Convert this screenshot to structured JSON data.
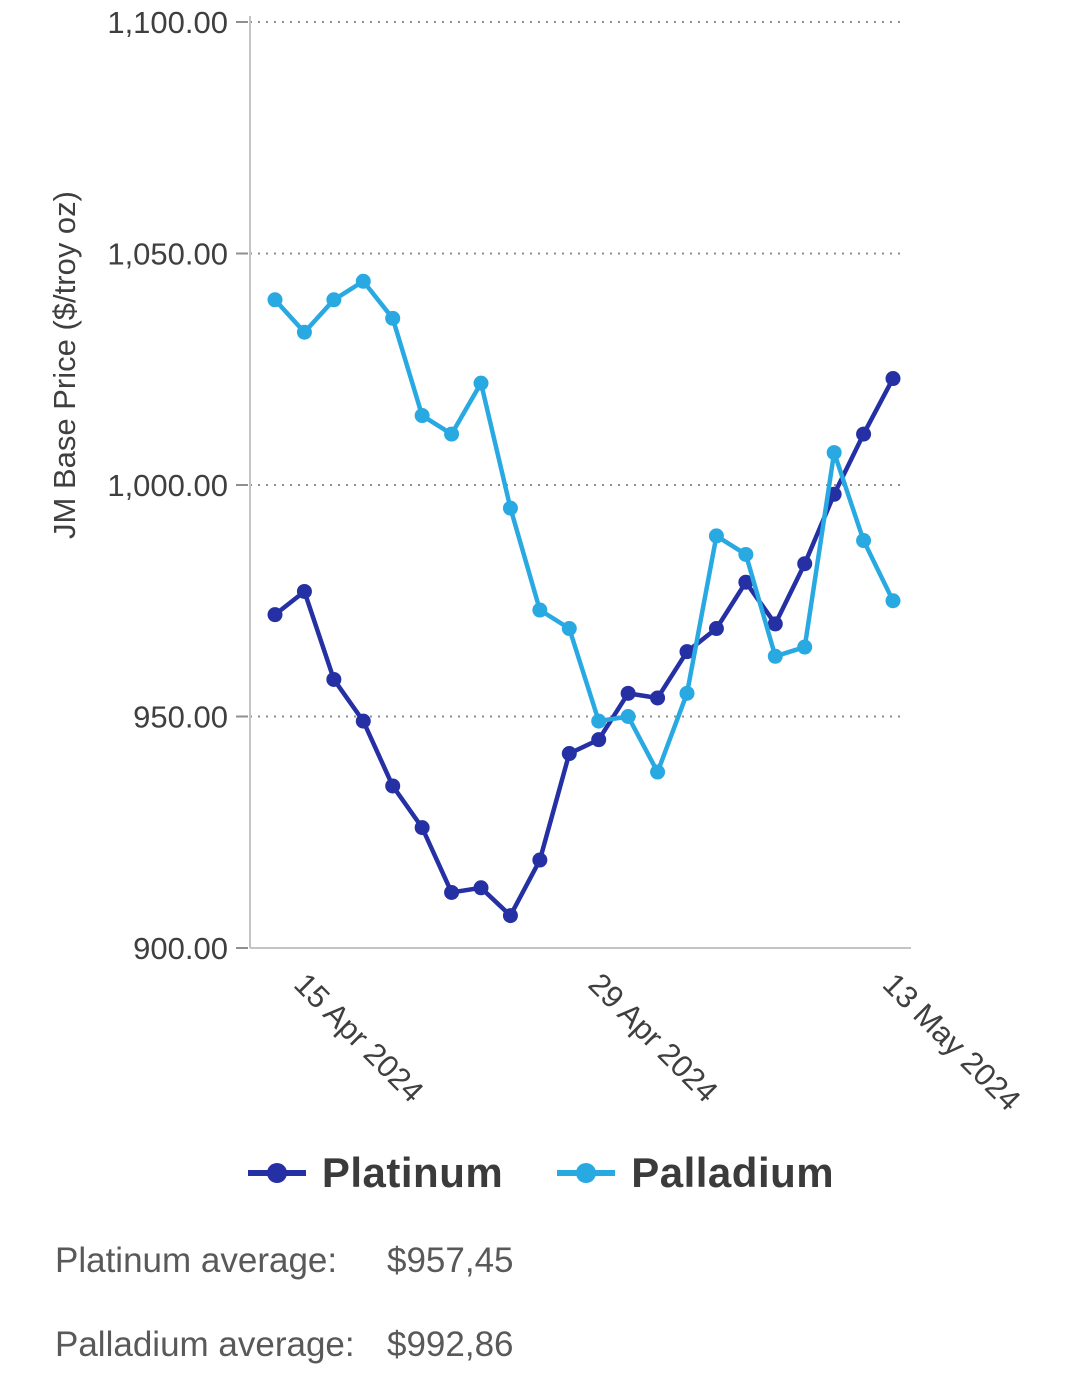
{
  "chart_data": {
    "type": "line",
    "title": "",
    "ylabel": "JM Base Price ($/troy oz)",
    "ylim": [
      900,
      1100
    ],
    "yticks": [
      900,
      950,
      1000,
      1050,
      1100
    ],
    "ytick_labels": [
      "900.00",
      "950.00",
      "1,000.00",
      "1,050.00",
      "1,100.00"
    ],
    "xticks": [
      {
        "index": 1,
        "label": "15 Apr 2024"
      },
      {
        "index": 11,
        "label": "29 Apr 2024"
      },
      {
        "index": 21,
        "label": "13 May 2024"
      }
    ],
    "grid": "horizontal dotted",
    "legend_position": "bottom",
    "series": [
      {
        "name": "Platinum",
        "color": "#2430A3",
        "values": [
          972,
          977,
          958,
          949,
          935,
          926,
          912,
          913,
          907,
          919,
          942,
          945,
          955,
          954,
          964,
          969,
          979,
          970,
          983,
          998,
          1011,
          1023
        ]
      },
      {
        "name": "Palladium",
        "color": "#29A9E2",
        "values": [
          1040,
          1033,
          1040,
          1044,
          1036,
          1015,
          1011,
          1022,
          995,
          973,
          969,
          949,
          950,
          938,
          955,
          989,
          985,
          963,
          965,
          1007,
          988,
          975
        ]
      }
    ]
  },
  "legend": {
    "items": [
      {
        "label": "Platinum",
        "color": "#2430A3"
      },
      {
        "label": "Palladium",
        "color": "#29A9E2"
      }
    ]
  },
  "footer": {
    "platinum_label": "Platinum average:",
    "platinum_value": "$957,45",
    "palladium_label": "Palladium average:",
    "palladium_value": "$992,86"
  }
}
